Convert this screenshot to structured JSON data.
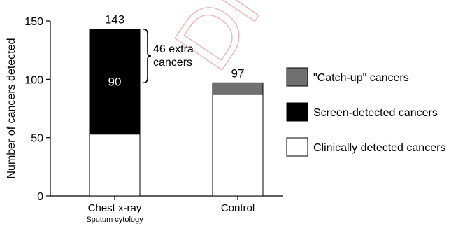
{
  "chart_data": {
    "type": "bar",
    "stacked": true,
    "ylabel": "Number of cancers detected",
    "ylim": [
      0,
      150
    ],
    "yticks": [
      0,
      50,
      100,
      150
    ],
    "categories": [
      "Chest x-ray",
      "Control"
    ],
    "category_sublabels": [
      "Sputum cytology",
      ""
    ],
    "totals_labels": [
      "143",
      "97"
    ],
    "series": [
      {
        "name": "Clinically detected cancers",
        "color": "#ffffff",
        "values": [
          53,
          87
        ]
      },
      {
        "name": "Screen-detected cancers",
        "color": "#000000",
        "values": [
          90,
          0
        ]
      },
      {
        "name": "\"Catch-up\" cancers",
        "color": "#707070",
        "values": [
          0,
          10
        ]
      }
    ],
    "inner_label": {
      "category": "Chest x-ray",
      "series": "Screen-detected cancers",
      "text": "90"
    },
    "annotation": {
      "category": "Chest x-ray",
      "from": 97,
      "to": 143,
      "lines": [
        "46 extra",
        "cancers"
      ]
    },
    "legend_order": [
      "\"Catch-up\" cancers",
      "Screen-detected cancers",
      "Clinically detected cancers"
    ],
    "legend_position": "right",
    "grid": false
  },
  "watermark": {
    "text": "Dr",
    "color": "#e8b8b8"
  }
}
